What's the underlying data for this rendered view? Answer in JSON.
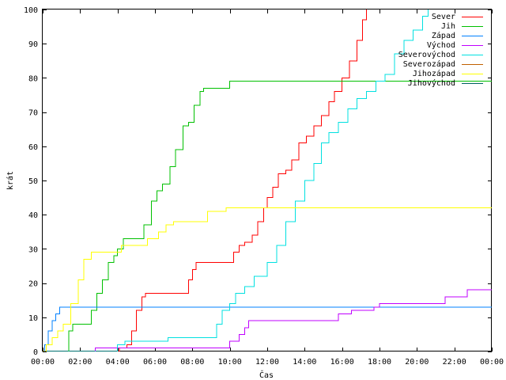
{
  "chart_data": {
    "type": "line",
    "xlabel": "Čas",
    "ylabel": "krát",
    "xlim": [
      0,
      24
    ],
    "ylim": [
      0,
      100
    ],
    "x_ticks": [
      0,
      2,
      4,
      6,
      8,
      10,
      12,
      14,
      16,
      18,
      20,
      22,
      24
    ],
    "x_tick_labels": [
      "00:00",
      "02:00",
      "04:00",
      "06:00",
      "08:00",
      "10:00",
      "12:00",
      "14:00",
      "16:00",
      "18:00",
      "20:00",
      "22:00",
      "00:00"
    ],
    "y_ticks": [
      0,
      10,
      20,
      30,
      40,
      50,
      60,
      70,
      80,
      90,
      100
    ],
    "y_tick_labels": [
      "0",
      "10",
      "20",
      "30",
      "40",
      "50",
      "60",
      "70",
      "80",
      "90",
      "100"
    ],
    "grid": false,
    "legend_position": "top-right",
    "series": [
      {
        "name": "Sever",
        "color": "#ff0000",
        "points": [
          [
            0,
            0
          ],
          [
            3.9,
            0
          ],
          [
            4.1,
            1
          ],
          [
            4.5,
            2
          ],
          [
            4.75,
            6
          ],
          [
            5.0,
            12
          ],
          [
            5.3,
            16
          ],
          [
            5.5,
            17
          ],
          [
            7.6,
            17
          ],
          [
            7.8,
            21
          ],
          [
            8.0,
            24
          ],
          [
            8.2,
            26
          ],
          [
            9.9,
            26
          ],
          [
            10.2,
            29
          ],
          [
            10.5,
            31
          ],
          [
            10.8,
            32
          ],
          [
            11.2,
            34
          ],
          [
            11.5,
            38
          ],
          [
            11.8,
            42
          ],
          [
            12.0,
            45
          ],
          [
            12.3,
            48
          ],
          [
            12.6,
            52
          ],
          [
            13.0,
            53
          ],
          [
            13.3,
            56
          ],
          [
            13.7,
            61
          ],
          [
            14.1,
            63
          ],
          [
            14.5,
            66
          ],
          [
            14.9,
            69
          ],
          [
            15.3,
            73
          ],
          [
            15.6,
            76
          ],
          [
            16.0,
            80
          ],
          [
            16.4,
            85
          ],
          [
            16.8,
            91
          ],
          [
            17.1,
            97
          ],
          [
            17.3,
            100
          ]
        ]
      },
      {
        "name": "Jih",
        "color": "#00c000",
        "points": [
          [
            0,
            0
          ],
          [
            1.2,
            0
          ],
          [
            1.4,
            6
          ],
          [
            1.6,
            8
          ],
          [
            2.3,
            8
          ],
          [
            2.6,
            12
          ],
          [
            2.9,
            17
          ],
          [
            3.2,
            21
          ],
          [
            3.5,
            26
          ],
          [
            3.8,
            28
          ],
          [
            4.0,
            30
          ],
          [
            4.3,
            33
          ],
          [
            5.1,
            33
          ],
          [
            5.4,
            37
          ],
          [
            5.8,
            44
          ],
          [
            6.1,
            47
          ],
          [
            6.4,
            49
          ],
          [
            6.8,
            54
          ],
          [
            7.1,
            59
          ],
          [
            7.5,
            66
          ],
          [
            7.8,
            67
          ],
          [
            8.1,
            72
          ],
          [
            8.4,
            76
          ],
          [
            8.6,
            77
          ],
          [
            9.8,
            77
          ],
          [
            10.0,
            79
          ],
          [
            24,
            79
          ]
        ]
      },
      {
        "name": "Západ",
        "color": "#0080ff",
        "points": [
          [
            0,
            0
          ],
          [
            0.1,
            2
          ],
          [
            0.3,
            6
          ],
          [
            0.5,
            9
          ],
          [
            0.7,
            11
          ],
          [
            0.9,
            13
          ],
          [
            24,
            13
          ]
        ]
      },
      {
        "name": "Východ",
        "color": "#c000ff",
        "points": [
          [
            0,
            0
          ],
          [
            2.7,
            0
          ],
          [
            2.8,
            1
          ],
          [
            9.9,
            1
          ],
          [
            10.0,
            3
          ],
          [
            10.5,
            5
          ],
          [
            10.8,
            7
          ],
          [
            11.0,
            9
          ],
          [
            15.5,
            9
          ],
          [
            15.8,
            11
          ],
          [
            16.5,
            12
          ],
          [
            17.7,
            13
          ],
          [
            18.0,
            14
          ],
          [
            21.3,
            14
          ],
          [
            21.5,
            16
          ],
          [
            22.5,
            16
          ],
          [
            22.7,
            18
          ],
          [
            24,
            18
          ]
        ]
      },
      {
        "name": "Severovýchod",
        "color": "#00e0e0",
        "points": [
          [
            0,
            0
          ],
          [
            3.8,
            0
          ],
          [
            4.0,
            2
          ],
          [
            4.4,
            3
          ],
          [
            6.5,
            3
          ],
          [
            6.7,
            4
          ],
          [
            9.0,
            4
          ],
          [
            9.3,
            8
          ],
          [
            9.6,
            12
          ],
          [
            10.0,
            14
          ],
          [
            10.3,
            17
          ],
          [
            10.8,
            19
          ],
          [
            11.3,
            22
          ],
          [
            12.0,
            26
          ],
          [
            12.5,
            31
          ],
          [
            13.0,
            38
          ],
          [
            13.5,
            44
          ],
          [
            14.0,
            50
          ],
          [
            14.5,
            55
          ],
          [
            14.9,
            61
          ],
          [
            15.3,
            64
          ],
          [
            15.8,
            67
          ],
          [
            16.3,
            71
          ],
          [
            16.8,
            74
          ],
          [
            17.3,
            76
          ],
          [
            17.8,
            79
          ],
          [
            18.3,
            81
          ],
          [
            18.8,
            87
          ],
          [
            19.3,
            91
          ],
          [
            19.8,
            94
          ],
          [
            20.3,
            98
          ],
          [
            20.6,
            100
          ]
        ]
      },
      {
        "name": "Severozápad",
        "color": "#c06000",
        "points": []
      },
      {
        "name": "Jihozápad",
        "color": "#ffff00",
        "points": [
          [
            0,
            0
          ],
          [
            0.2,
            2
          ],
          [
            0.5,
            4
          ],
          [
            0.8,
            6
          ],
          [
            1.1,
            8
          ],
          [
            1.5,
            14
          ],
          [
            1.9,
            21
          ],
          [
            2.2,
            27
          ],
          [
            2.6,
            29
          ],
          [
            3.9,
            29
          ],
          [
            4.2,
            31
          ],
          [
            5.3,
            31
          ],
          [
            5.6,
            33
          ],
          [
            6.2,
            35
          ],
          [
            6.6,
            37
          ],
          [
            7.0,
            38
          ],
          [
            8.5,
            38
          ],
          [
            8.8,
            41
          ],
          [
            9.5,
            41
          ],
          [
            9.8,
            42
          ],
          [
            24,
            42
          ]
        ]
      },
      {
        "name": "Jihovýchod",
        "color": "#006060",
        "points": []
      }
    ]
  }
}
